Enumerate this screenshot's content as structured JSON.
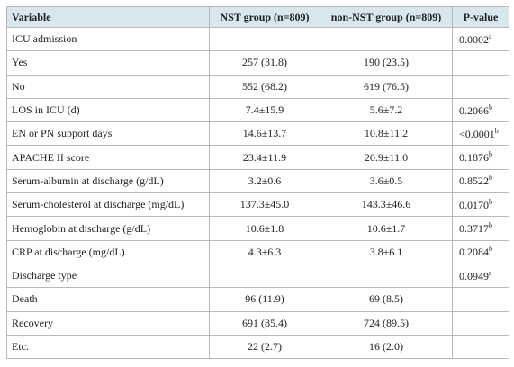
{
  "table": {
    "header": [
      "Variable",
      "NST group (n=809)",
      "non-NST group (n=809)",
      "P-value"
    ],
    "rows": [
      {
        "variable": "ICU admission",
        "p_value": "0.0002",
        "p_sup": "a"
      },
      {
        "variable": "Yes",
        "nst": "257 (31.8)",
        "non_nst": "190 (23.5)"
      },
      {
        "variable": "No",
        "nst": "552 (68.2)",
        "non_nst": "619 (76.5)"
      },
      {
        "variable": "LOS in ICU (d)",
        "nst": "7.4±15.9",
        "non_nst": "5.6±7.2",
        "p_value": "0.2066",
        "p_sup": "b"
      },
      {
        "variable": "EN or PN support days",
        "nst": "14.6±13.7",
        "non_nst": "10.8±11.2",
        "p_value": "<0.0001",
        "p_sup": "b"
      },
      {
        "variable": "APACHE II score",
        "nst": "23.4±11.9",
        "non_nst": "20.9±11.0",
        "p_value": "0.1876",
        "p_sup": "b"
      },
      {
        "variable": "Serum-albumin at discharge (g/dL)",
        "nst": "3.2±0.6",
        "non_nst": "3.6±0.5",
        "p_value": "0.8522",
        "p_sup": "b"
      },
      {
        "variable": "Serum-cholesterol at discharge (mg/dL)",
        "nst": "137.3±45.0",
        "non_nst": "143.3±46.6",
        "p_value": "0.0170",
        "p_sup": "b"
      },
      {
        "variable": "Hemoglobin at discharge (g/dL)",
        "nst": "10.6±1.8",
        "non_nst": "10.6±1.7",
        "p_value": "0.3717",
        "p_sup": "b"
      },
      {
        "variable": "CRP at discharge (mg/dL)",
        "nst": "4.3±6.3",
        "non_nst": "3.8±6.1",
        "p_value": "0.2084",
        "p_sup": "b"
      },
      {
        "variable": "Discharge type",
        "p_value": "0.0949",
        "p_sup": "a"
      },
      {
        "variable": "Death",
        "nst": "96 (11.9)",
        "non_nst": "69 (8.5)"
      },
      {
        "variable": "Recovery",
        "nst": "691 (85.4)",
        "non_nst": "724 (89.5)"
      },
      {
        "variable": "Etc.",
        "nst": "22 (2.7)",
        "non_nst": "16 (2.0)"
      }
    ]
  }
}
